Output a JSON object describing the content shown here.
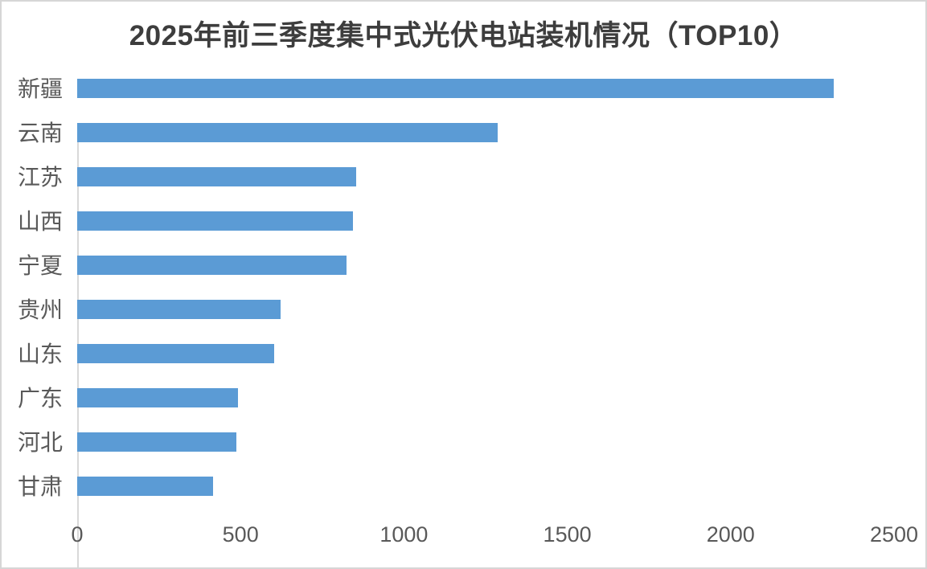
{
  "chart": {
    "title": "2025年前三季度集中式光伏电站装机情况（TOP10）"
  },
  "chart_data": {
    "type": "bar",
    "orientation": "horizontal",
    "title": "2025年前三季度集中式光伏电站装机情况（TOP10）",
    "categories": [
      "新疆",
      "云南",
      "江苏",
      "山西",
      "宁夏",
      "贵州",
      "山东",
      "广东",
      "河北",
      "甘肃"
    ],
    "values": [
      2315,
      1287,
      854,
      843,
      823,
      623,
      602,
      492,
      487,
      415
    ],
    "xlabel": "",
    "ylabel": "",
    "xlim": [
      0,
      2500
    ],
    "xticks": [
      0,
      500,
      1000,
      1500,
      2000,
      2500
    ],
    "grid": false,
    "legend": false,
    "colors": {
      "bar": "#5B9BD5",
      "title_text": "#3d3d3d",
      "axis_text": "#595959",
      "axis_line": "#d9d9d9",
      "frame_border": "#d6d6d6",
      "background": "#ffffff"
    }
  }
}
